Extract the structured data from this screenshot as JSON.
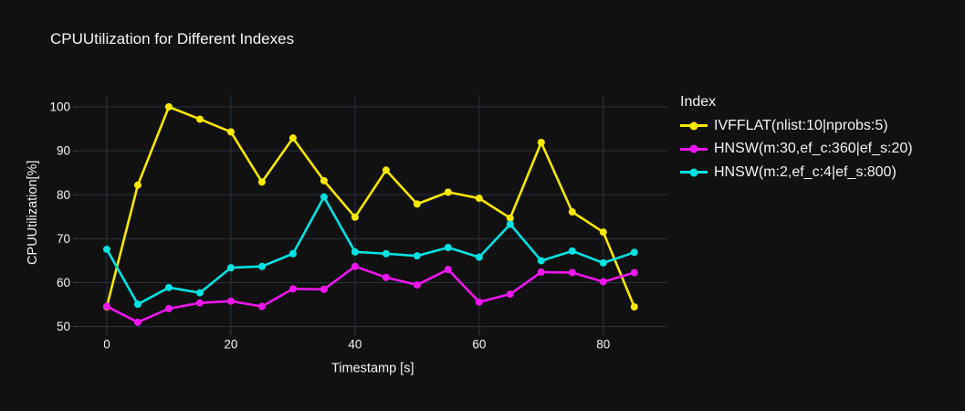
{
  "title": "CPUUtilization for Different Indexes",
  "legend": {
    "title": "Index"
  },
  "chart_data": {
    "type": "line",
    "title": "CPUUtilization for Different Indexes",
    "xlabel": "Timestamp [s]",
    "ylabel": "CPUUtilization[%]",
    "x": [
      0,
      5,
      10,
      15,
      20,
      25,
      30,
      35,
      40,
      45,
      50,
      55,
      60,
      65,
      70,
      75,
      80,
      85
    ],
    "series": [
      {
        "name": "IVFFLAT(nlist:10|nprobs:5)",
        "color": "#f9e800",
        "values": [
          54.5,
          82.2,
          100.0,
          97.2,
          94.3,
          82.9,
          92.9,
          83.2,
          74.9,
          85.6,
          77.9,
          80.6,
          79.2,
          74.7,
          91.9,
          76.1,
          71.5,
          54.5
        ]
      },
      {
        "name": "HNSW(m:30,ef_c:360|ef_s:20)",
        "color": "#ef16ef",
        "values": [
          54.6,
          51.0,
          54.1,
          55.4,
          55.8,
          54.6,
          58.6,
          58.5,
          63.7,
          61.2,
          59.5,
          63.0,
          55.6,
          57.4,
          62.4,
          62.3,
          60.2,
          62.3
        ]
      },
      {
        "name": "HNSW(m:2,ef_c:4|ef_s:800)",
        "color": "#00e3e3",
        "values": [
          67.6,
          55.1,
          58.9,
          57.7,
          63.4,
          63.7,
          66.6,
          79.5,
          67.0,
          66.6,
          66.1,
          68.0,
          65.8,
          73.3,
          65.0,
          67.2,
          64.5,
          66.9
        ]
      }
    ],
    "xticks": [
      0,
      20,
      40,
      60,
      80
    ],
    "yticks": [
      50,
      60,
      70,
      80,
      90,
      100
    ],
    "xlim": [
      -4.7,
      90.4
    ],
    "ylim": [
      49.2,
      102.7
    ],
    "grid": true,
    "legend_position": "right",
    "colors": {
      "background": "#111111",
      "grid": "#283442",
      "tick": "#3b4654",
      "text": "#f2f5fa"
    }
  }
}
